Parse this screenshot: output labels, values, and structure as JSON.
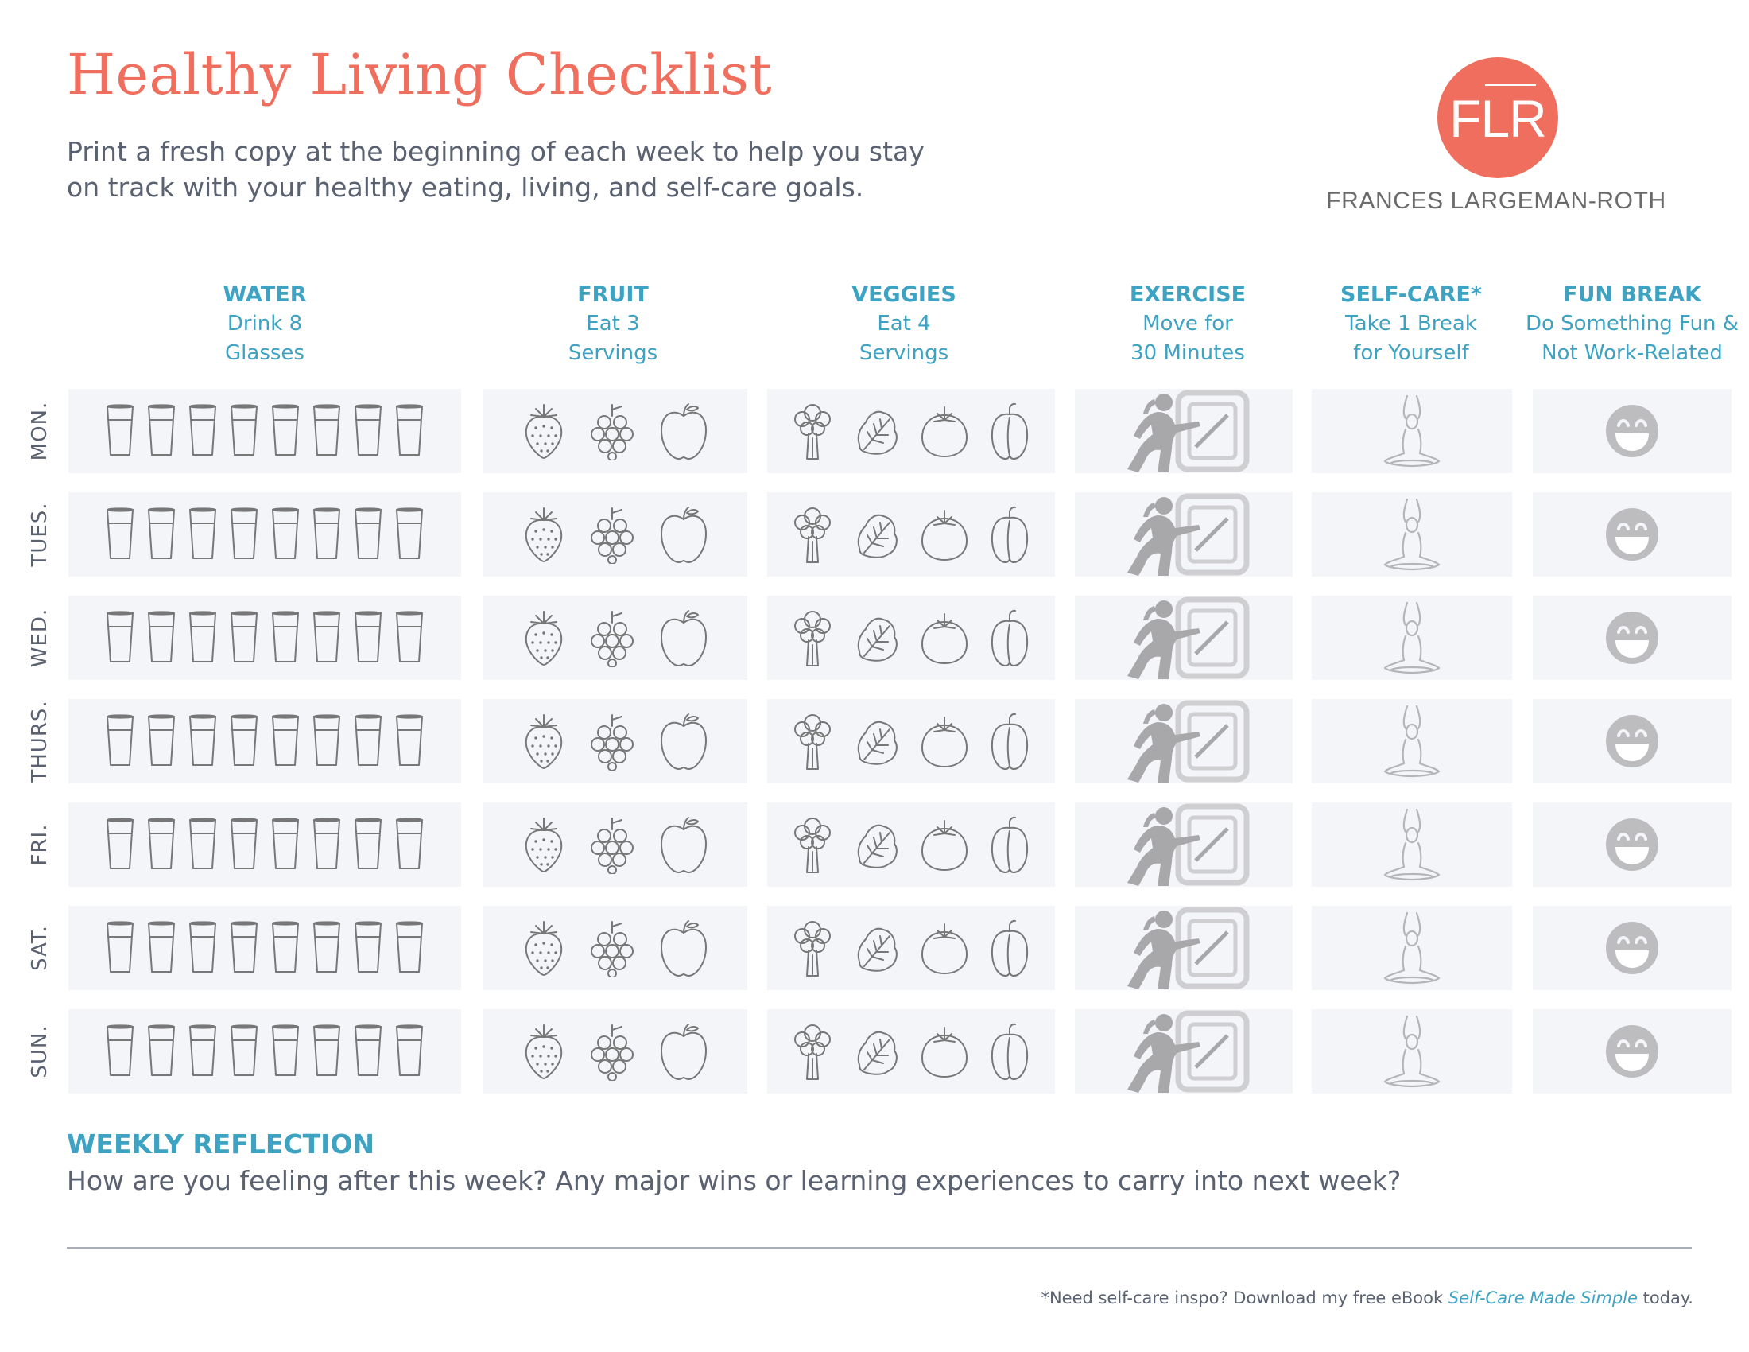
{
  "title": "Healthy Living Checklist",
  "intro": "Print a fresh copy at the beginning of each week to help you stay on track with your healthy eating, living, and self-care goals.",
  "brand": {
    "monogram": "FLR",
    "name": "FRANCES LARGEMAN-ROTH",
    "color": "#ef6e5d"
  },
  "accent_color": "#3ea3c3",
  "columns": [
    {
      "heading": "WATER",
      "line1": "Drink 8",
      "line2": "Glasses",
      "icons": [
        "glass-icon",
        "glass-icon",
        "glass-icon",
        "glass-icon",
        "glass-icon",
        "glass-icon",
        "glass-icon",
        "glass-icon"
      ]
    },
    {
      "heading": "FRUIT",
      "line1": "Eat 3",
      "line2": "Servings",
      "icons": [
        "strawberry-icon",
        "grapes-icon",
        "apple-icon"
      ]
    },
    {
      "heading": "VEGGIES",
      "line1": "Eat 4",
      "line2": "Servings",
      "icons": [
        "broccoli-icon",
        "lettuce-icon",
        "tomato-icon",
        "pepper-icon"
      ]
    },
    {
      "heading": "EXERCISE",
      "line1": "Move for",
      "line2": "30 Minutes",
      "icons": [
        "exercise-icon"
      ]
    },
    {
      "heading": "SELF-CARE*",
      "line1": "Take 1 Break",
      "line2": "for Yourself",
      "icons": [
        "meditation-icon"
      ]
    },
    {
      "heading": "FUN BREAK",
      "line1": "Do Something Fun &",
      "line2": "Not Work-Related",
      "icons": [
        "laughing-face-icon"
      ]
    }
  ],
  "days": [
    "MON.",
    "TUES.",
    "WED.",
    "THURS.",
    "FRI.",
    "SAT.",
    "SUN."
  ],
  "reflection": {
    "heading": "WEEKLY REFLECTION",
    "prompt": "How are you feeling after this week? Any major wins or learning experiences to carry into next week?"
  },
  "footnote": {
    "prefix": "*Need self-care inspo? Download my free eBook ",
    "ebook_title": "Self-Care Made Simple",
    "suffix": " today."
  }
}
